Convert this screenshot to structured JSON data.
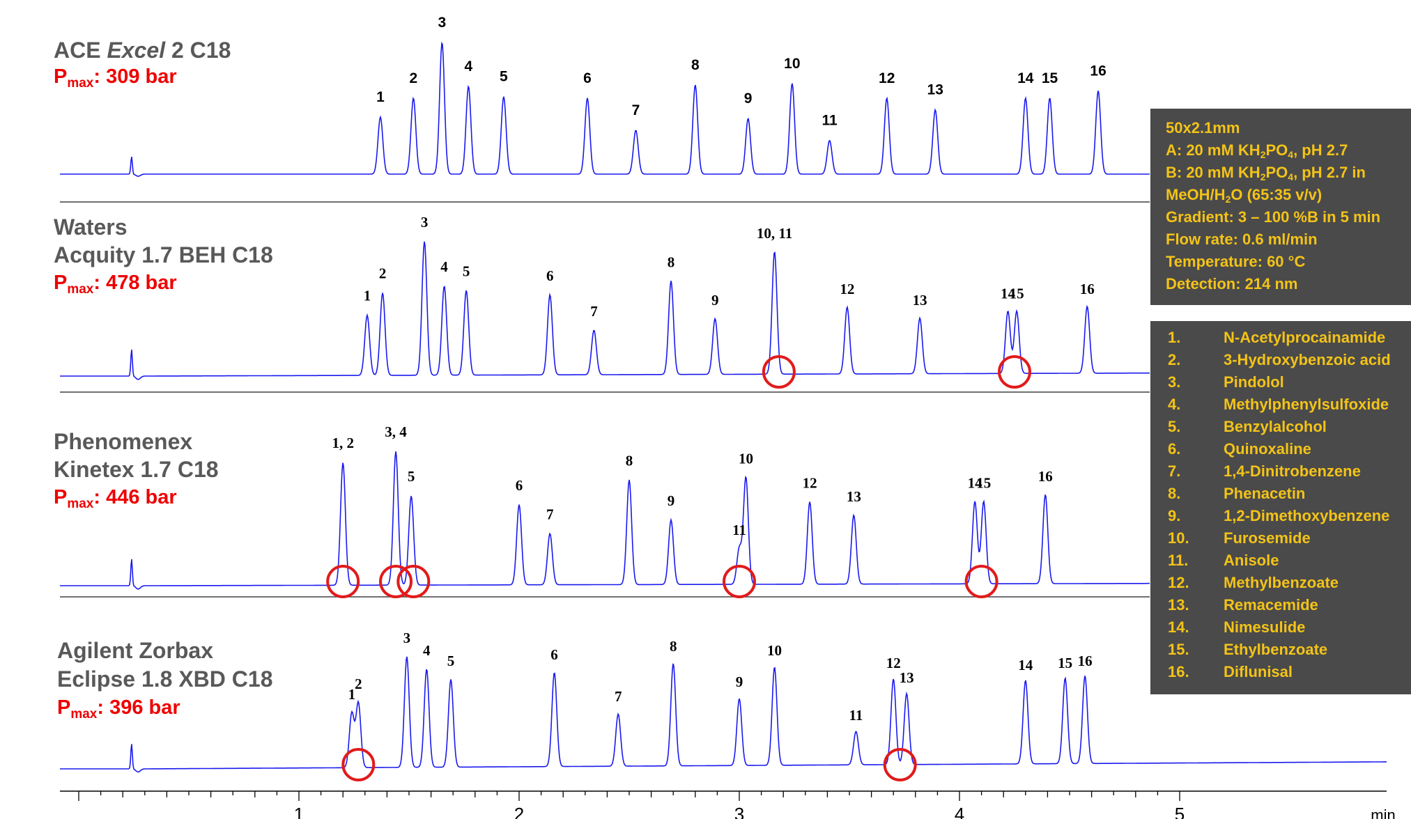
{
  "panels": [
    {
      "title_parts": [
        "ACE ",
        "Excel",
        " 2 C18"
      ],
      "title_line2": "",
      "pmax_label": "P",
      "pmax_sub": "max",
      "pmax_value": ": 309 bar",
      "baseline_level": 0.0,
      "peaks": [
        {
          "label": "1",
          "rt": 1.37,
          "height": 0.39
        },
        {
          "label": "2",
          "rt": 1.52,
          "height": 0.52
        },
        {
          "label": "3",
          "rt": 1.65,
          "height": 0.9
        },
        {
          "label": "4",
          "rt": 1.77,
          "height": 0.6
        },
        {
          "label": "5",
          "rt": 1.93,
          "height": 0.53
        },
        {
          "label": "6",
          "rt": 2.31,
          "height": 0.52
        },
        {
          "label": "7",
          "rt": 2.53,
          "height": 0.3
        },
        {
          "label": "8",
          "rt": 2.8,
          "height": 0.61
        },
        {
          "label": "9",
          "rt": 3.04,
          "height": 0.38
        },
        {
          "label": "10",
          "rt": 3.24,
          "height": 0.62
        },
        {
          "label": "11",
          "rt": 3.41,
          "height": 0.23
        },
        {
          "label": "12",
          "rt": 3.67,
          "height": 0.52
        },
        {
          "label": "13",
          "rt": 3.89,
          "height": 0.44
        },
        {
          "label": "14",
          "rt": 4.3,
          "height": 0.52
        },
        {
          "label": "15",
          "rt": 4.41,
          "height": 0.52
        },
        {
          "label": "16",
          "rt": 4.63,
          "height": 0.57
        }
      ],
      "circles": []
    },
    {
      "title_parts": [
        "Waters",
        "",
        ""
      ],
      "title_line2": "Acquity 1.7 BEH C18",
      "pmax_label": "P",
      "pmax_sub": "max",
      "pmax_value": ": 478 bar",
      "baseline_level": 0.04,
      "peaks": [
        {
          "label": "1",
          "rt": 1.31,
          "height": 0.27
        },
        {
          "label": "2",
          "rt": 1.38,
          "height": 0.37
        },
        {
          "label": "3",
          "rt": 1.57,
          "height": 0.6
        },
        {
          "label": "4",
          "rt": 1.66,
          "height": 0.4
        },
        {
          "label": "5",
          "rt": 1.76,
          "height": 0.38
        },
        {
          "label": "6",
          "rt": 2.14,
          "height": 0.36
        },
        {
          "label": "7",
          "rt": 2.34,
          "height": 0.2
        },
        {
          "label": "8",
          "rt": 2.69,
          "height": 0.42
        },
        {
          "label": "9",
          "rt": 2.89,
          "height": 0.25
        },
        {
          "label": "10, 11",
          "rt": 3.16,
          "height": 0.55
        },
        {
          "label": "12",
          "rt": 3.49,
          "height": 0.3
        },
        {
          "label": "13",
          "rt": 3.82,
          "height": 0.25
        },
        {
          "label": "14",
          "rt": 4.22,
          "height": 0.28
        },
        {
          "label": "15",
          "rt": 4.26,
          "height": 0.28
        },
        {
          "label": "16",
          "rt": 4.58,
          "height": 0.3
        }
      ],
      "circles": [
        3.18,
        4.25
      ]
    },
    {
      "title_parts": [
        "Phenomenex",
        "",
        ""
      ],
      "title_line2": "Kinetex 1.7 C18",
      "pmax_label": "P",
      "pmax_sub": "max",
      "pmax_value": ": 446 bar",
      "baseline_level": 0.03,
      "peaks": [
        {
          "label": "1, 2",
          "rt": 1.2,
          "height": 0.55
        },
        {
          "label": "3, 4",
          "rt": 1.44,
          "height": 0.6
        },
        {
          "label": "5",
          "rt": 1.51,
          "height": 0.4
        },
        {
          "label": "6",
          "rt": 2.0,
          "height": 0.36
        },
        {
          "label": "7",
          "rt": 2.14,
          "height": 0.23
        },
        {
          "label": "8",
          "rt": 2.5,
          "height": 0.47
        },
        {
          "label": "9",
          "rt": 2.69,
          "height": 0.29
        },
        {
          "label": "11",
          "rt": 3.0,
          "height": 0.16
        },
        {
          "label": "10",
          "rt": 3.03,
          "height": 0.48
        },
        {
          "label": "12",
          "rt": 3.32,
          "height": 0.37
        },
        {
          "label": "13",
          "rt": 3.52,
          "height": 0.31
        },
        {
          "label": "14",
          "rt": 4.07,
          "height": 0.37
        },
        {
          "label": "15",
          "rt": 4.11,
          "height": 0.37
        },
        {
          "label": "16",
          "rt": 4.39,
          "height": 0.4
        }
      ],
      "circles": [
        1.2,
        1.44,
        1.52,
        3.0,
        4.1
      ]
    },
    {
      "title_parts": [
        "Agilent Zorbax",
        "",
        ""
      ],
      "title_line2": "Eclipse 1.8 XBD C18",
      "pmax_label": "P",
      "pmax_sub": "max",
      "pmax_value": ": 396 bar",
      "baseline_level": 0.08,
      "peaks": [
        {
          "label": "1",
          "rt": 1.24,
          "height": 0.26
        },
        {
          "label": "2",
          "rt": 1.27,
          "height": 0.31
        },
        {
          "label": "3",
          "rt": 1.49,
          "height": 0.53
        },
        {
          "label": "4",
          "rt": 1.58,
          "height": 0.47
        },
        {
          "label": "5",
          "rt": 1.69,
          "height": 0.42
        },
        {
          "label": "6",
          "rt": 2.16,
          "height": 0.45
        },
        {
          "label": "7",
          "rt": 2.45,
          "height": 0.25
        },
        {
          "label": "8",
          "rt": 2.7,
          "height": 0.49
        },
        {
          "label": "9",
          "rt": 3.0,
          "height": 0.32
        },
        {
          "label": "10",
          "rt": 3.16,
          "height": 0.47
        },
        {
          "label": "11",
          "rt": 3.53,
          "height": 0.16
        },
        {
          "label": "12",
          "rt": 3.7,
          "height": 0.41
        },
        {
          "label": "13",
          "rt": 3.76,
          "height": 0.34
        },
        {
          "label": "14",
          "rt": 4.3,
          "height": 0.4
        },
        {
          "label": "15",
          "rt": 4.48,
          "height": 0.41
        },
        {
          "label": "16",
          "rt": 4.57,
          "height": 0.42
        }
      ],
      "circles": [
        1.27,
        3.73
      ]
    }
  ],
  "chart_data": {
    "type": "line",
    "title": "",
    "xlabel": "min",
    "ylabel": "",
    "xlim": [
      0,
      5
    ],
    "x_ticks": [
      1,
      2,
      3,
      4,
      5
    ],
    "x_tick_labels": [
      "1",
      "2",
      "3",
      "4",
      "5"
    ],
    "series": [
      {
        "name": "ACE Excel 2 C18",
        "pmax_bar": 309,
        "peak_labels": [
          "1",
          "2",
          "3",
          "4",
          "5",
          "6",
          "7",
          "8",
          "9",
          "10",
          "11",
          "12",
          "13",
          "14",
          "15",
          "16"
        ],
        "retention_min": [
          1.37,
          1.52,
          1.65,
          1.77,
          1.93,
          2.31,
          2.53,
          2.8,
          3.04,
          3.24,
          3.41,
          3.67,
          3.89,
          4.3,
          4.41,
          4.63
        ]
      },
      {
        "name": "Waters Acquity 1.7 BEH C18",
        "pmax_bar": 478,
        "peak_labels": [
          "1",
          "2",
          "3",
          "4",
          "5",
          "6",
          "7",
          "8",
          "9",
          "10, 11",
          "12",
          "13",
          "14",
          "15",
          "16"
        ],
        "retention_min": [
          1.31,
          1.38,
          1.57,
          1.66,
          1.76,
          2.14,
          2.34,
          2.69,
          2.89,
          3.16,
          3.49,
          3.82,
          4.22,
          4.26,
          4.58
        ]
      },
      {
        "name": "Phenomenex Kinetex 1.7 C18",
        "pmax_bar": 446,
        "peak_labels": [
          "1, 2",
          "3, 4",
          "5",
          "6",
          "7",
          "8",
          "9",
          "11",
          "10",
          "12",
          "13",
          "14",
          "15",
          "16"
        ],
        "retention_min": [
          1.2,
          1.44,
          1.51,
          2.0,
          2.14,
          2.5,
          2.69,
          3.0,
          3.03,
          3.32,
          3.52,
          4.07,
          4.11,
          4.39
        ]
      },
      {
        "name": "Agilent Zorbax Eclipse 1.8 XBD C18",
        "pmax_bar": 396,
        "peak_labels": [
          "1",
          "2",
          "3",
          "4",
          "5",
          "6",
          "7",
          "8",
          "9",
          "10",
          "11",
          "12",
          "13",
          "14",
          "15",
          "16"
        ],
        "retention_min": [
          1.24,
          1.27,
          1.49,
          1.58,
          1.69,
          2.16,
          2.45,
          2.7,
          3.0,
          3.16,
          3.53,
          3.7,
          3.76,
          4.3,
          4.48,
          4.57
        ]
      }
    ]
  },
  "conditions": {
    "line1": "50x2.1mm",
    "line2_a": "A: 20 mM KH",
    "line2_s1": "2",
    "line2_b": "PO",
    "line2_s2": "4",
    "line2_c": ", pH 2.7",
    "line3_a": "B: 20 mM KH",
    "line3_s1": "2",
    "line3_b": "PO",
    "line3_s2": "4",
    "line3_c": ", pH 2.7 in",
    "line4_a": "MeOH/H",
    "line4_s1": "2",
    "line4_b": "O (65:35 v/v)",
    "line5": "Gradient: 3 – 100 %B in 5 min",
    "line6": "Flow rate: 0.6 ml/min",
    "line7": "Temperature: 60 °C",
    "line8": "Detection: 214 nm"
  },
  "compounds": [
    {
      "num": "1.",
      "name": "N-Acetylprocainamide"
    },
    {
      "num": "2.",
      "name": "3-Hydroxybenzoic acid"
    },
    {
      "num": "3.",
      "name": "Pindolol"
    },
    {
      "num": "4.",
      "name": "Methylphenylsulfoxide"
    },
    {
      "num": "5.",
      "name": "Benzylalcohol"
    },
    {
      "num": "6.",
      "name": "Quinoxaline"
    },
    {
      "num": "7.",
      "name": "1,4-Dinitrobenzene"
    },
    {
      "num": "8.",
      "name": "Phenacetin"
    },
    {
      "num": "9.",
      "name": "1,2-Dimethoxybenzene"
    },
    {
      "num": "10.",
      "name": "Furosemide"
    },
    {
      "num": "11.",
      "name": "Anisole"
    },
    {
      "num": "12.",
      "name": "Methylbenzoate"
    },
    {
      "num": "13.",
      "name": "Remacemide"
    },
    {
      "num": "14.",
      "name": "Nimesulide"
    },
    {
      "num": "15.",
      "name": "Ethylbenzoate"
    },
    {
      "num": "16.",
      "name": "Diflunisal"
    }
  ],
  "colors": {
    "trace": "#1a1aee",
    "circle": "#e11b1b",
    "pmax": "#ee0000",
    "box_bg": "#4a4a4a",
    "box_text": "#f3c318",
    "title": "#595959"
  }
}
